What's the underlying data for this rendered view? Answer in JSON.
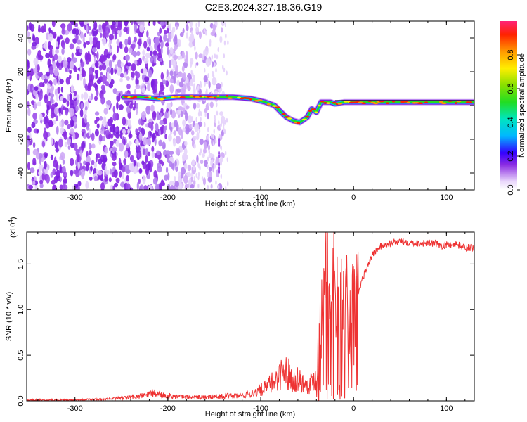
{
  "title": "C2E3.2024.327.18.36.G19",
  "chart_data": [
    {
      "type": "heatmap",
      "xlabel": "Height of straight line (km)",
      "ylabel": "Frequency (Hz)",
      "xlim": [
        -352,
        130
      ],
      "ylim": [
        -50,
        50
      ],
      "xticks": [
        -300,
        -200,
        -100,
        0,
        100
      ],
      "yticks": [
        -40,
        -20,
        0,
        20,
        40
      ],
      "colorbar": {
        "label": "Normalized spectral amplitude",
        "range": [
          0,
          1
        ],
        "ticks": [
          "0.0",
          "0.2",
          "0.4",
          "0.6",
          "0.8"
        ],
        "tick_values": [
          0.0,
          0.2,
          0.4,
          0.6,
          0.8
        ]
      },
      "ridge": {
        "x": [
          -248,
          -230,
          -210,
          -190,
          -170,
          -150,
          -130,
          -110,
          -95,
          -85,
          -78,
          -72,
          -65,
          -58,
          -50,
          -45,
          -40,
          -35,
          -30,
          -25,
          -20,
          -10,
          0,
          20,
          40,
          60,
          80,
          100,
          120,
          130
        ],
        "y": [
          5,
          5,
          4,
          5,
          5,
          5,
          5,
          4,
          2,
          0,
          -4,
          -7,
          -9,
          -10,
          -7,
          -2,
          -4,
          2,
          2,
          2,
          1,
          2,
          2,
          2,
          2,
          2,
          2,
          2,
          2,
          2
        ]
      }
    },
    {
      "type": "line",
      "xlabel": "Height of straight line (km)",
      "ylabel": "SNR (10 * v/v)",
      "multiplier": "(x10",
      "multiplier_exp": "4",
      "xlim": [
        -352,
        130
      ],
      "ylim": [
        0,
        1.85
      ],
      "xticks": [
        -300,
        -200,
        -100,
        0,
        100
      ],
      "yticks": [
        0.0,
        0.5,
        1.0,
        1.5
      ],
      "ytick_labels": [
        "0.0",
        "0.5",
        "1.0",
        "1.5"
      ],
      "color": "#ee3333",
      "series": [
        {
          "x": [
            -352,
            -330,
            -300,
            -270,
            -250,
            -230,
            -215,
            -205,
            -195,
            -180,
            -160,
            -140,
            -120,
            -110,
            -100,
            -95,
            -90,
            -85,
            -80,
            -75,
            -70,
            -65,
            -60,
            -55,
            -50,
            -45,
            -40,
            -37,
            -35,
            -30,
            -25,
            -20,
            -15,
            -10,
            -5,
            0,
            5,
            10,
            20,
            30,
            40,
            50,
            60,
            70,
            80,
            90,
            95,
            100,
            110,
            120,
            130
          ],
          "y": [
            0.01,
            0.01,
            0.01,
            0.02,
            0.03,
            0.05,
            0.08,
            0.06,
            0.05,
            0.04,
            0.04,
            0.05,
            0.06,
            0.08,
            0.12,
            0.14,
            0.18,
            0.22,
            0.28,
            0.33,
            0.3,
            0.22,
            0.25,
            0.2,
            0.18,
            0.2,
            0.25,
            0.4,
            0.8,
            1.2,
            1.3,
            1.25,
            1.15,
            1.05,
            0.95,
            1.0,
            1.15,
            1.35,
            1.6,
            1.7,
            1.73,
            1.75,
            1.74,
            1.73,
            1.73,
            1.72,
            1.7,
            1.71,
            1.72,
            1.68,
            1.68
          ]
        }
      ]
    }
  ]
}
